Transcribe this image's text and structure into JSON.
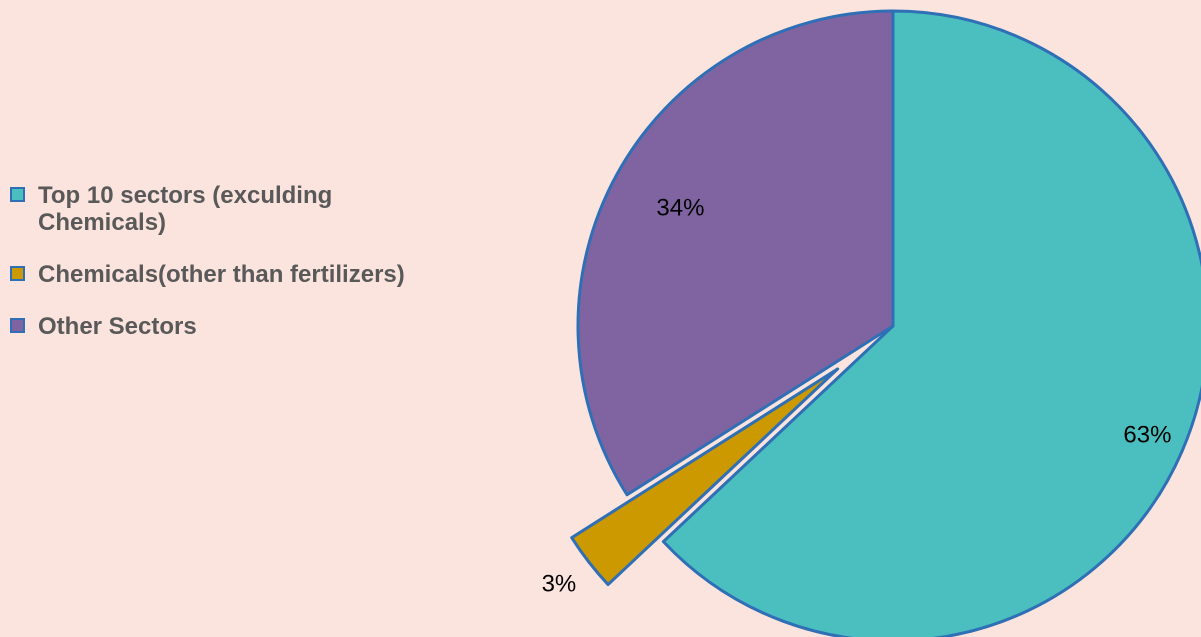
{
  "chart_data": {
    "type": "pie",
    "title": "",
    "slices": [
      {
        "label": "Top 10 sectors (exculding Chemicals)",
        "value": 63,
        "display": "63%",
        "color": "#4bbfbf"
      },
      {
        "label": "Chemicals(other than fertilizers)",
        "value": 3,
        "display": "3%",
        "color": "#cc9900"
      },
      {
        "label": "Other Sectors",
        "value": 34,
        "display": "34%",
        "color": "#8064a2"
      }
    ],
    "exploded": [
      "Chemicals(other than fertilizers)"
    ],
    "legend_position": "left",
    "edge_color": "#2e6fb5"
  }
}
